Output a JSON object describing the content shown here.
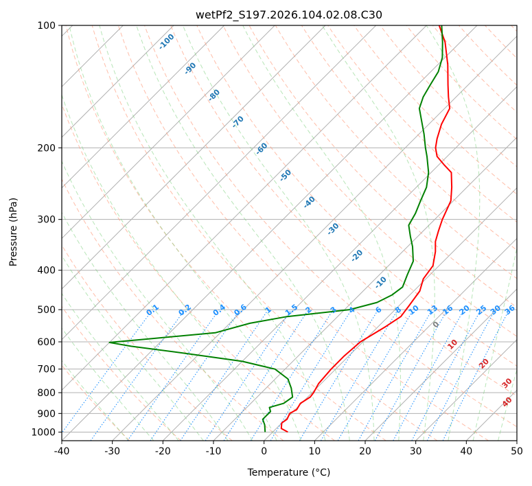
{
  "chart_data": {
    "type": "line",
    "title": "wetPf2_S197.2026.104.02.08.C30",
    "xlabel": "Temperature (°C)",
    "ylabel": "Pressure (hPa)",
    "xlim": [
      -40,
      50
    ],
    "ylim": [
      1050,
      100
    ],
    "y_scale": "log",
    "skew": true,
    "grid": true,
    "x_ticks": [
      -40,
      -30,
      -20,
      -10,
      0,
      10,
      20,
      30,
      40,
      50
    ],
    "y_ticks": [
      100,
      200,
      300,
      400,
      500,
      600,
      700,
      800,
      900,
      1000
    ],
    "series": [
      {
        "role": "temperature",
        "color": "#ff0000",
        "points": [
          [
            1000,
            3
          ],
          [
            980,
            1
          ],
          [
            950,
            0
          ],
          [
            930,
            0.3
          ],
          [
            900,
            -0.3
          ],
          [
            880,
            0.3
          ],
          [
            850,
            -0.2
          ],
          [
            820,
            0.5
          ],
          [
            800,
            0.3
          ],
          [
            760,
            -0.5
          ],
          [
            700,
            -0.9
          ],
          [
            650,
            -0.9
          ],
          [
            600,
            -0.5
          ],
          [
            550,
            1.5
          ],
          [
            520,
            2.5
          ],
          [
            490,
            2.0
          ],
          [
            450,
            1.2
          ],
          [
            420,
            -0.5
          ],
          [
            390,
            -1.2
          ],
          [
            360,
            -3.5
          ],
          [
            340,
            -5.5
          ],
          [
            320,
            -7.0
          ],
          [
            300,
            -8.5
          ],
          [
            270,
            -10.5
          ],
          [
            250,
            -13.0
          ],
          [
            230,
            -16.0
          ],
          [
            220,
            -19.0
          ],
          [
            210,
            -22.0
          ],
          [
            200,
            -24.0
          ],
          [
            190,
            -25.5
          ],
          [
            175,
            -27.5
          ],
          [
            160,
            -29.0
          ],
          [
            150,
            -31.5
          ],
          [
            140,
            -34.0
          ],
          [
            125,
            -38.0
          ],
          [
            110,
            -43.0
          ],
          [
            100,
            -47.5
          ]
        ]
      },
      {
        "role": "dewpoint",
        "color": "#008000",
        "points": [
          [
            1000,
            -1.5
          ],
          [
            960,
            -3.0
          ],
          [
            930,
            -4.5
          ],
          [
            890,
            -4.5
          ],
          [
            870,
            -5.5
          ],
          [
            850,
            -3.5
          ],
          [
            820,
            -3.0
          ],
          [
            780,
            -5.0
          ],
          [
            740,
            -7.5
          ],
          [
            700,
            -12.0
          ],
          [
            670,
            -20.0
          ],
          [
            640,
            -33.0
          ],
          [
            615,
            -45.0
          ],
          [
            602,
            -50.0
          ],
          [
            590,
            -43.0
          ],
          [
            570,
            -31.0
          ],
          [
            540,
            -26.0
          ],
          [
            520,
            -20.0
          ],
          [
            500,
            -9.0
          ],
          [
            480,
            -5.0
          ],
          [
            460,
            -3.5
          ],
          [
            440,
            -3.0
          ],
          [
            410,
            -4.5
          ],
          [
            380,
            -6.0
          ],
          [
            350,
            -9.0
          ],
          [
            330,
            -11.5
          ],
          [
            310,
            -14.0
          ],
          [
            290,
            -15.0
          ],
          [
            270,
            -16.5
          ],
          [
            250,
            -18.0
          ],
          [
            230,
            -20.5
          ],
          [
            210,
            -24.0
          ],
          [
            200,
            -26.0
          ],
          [
            185,
            -29.0
          ],
          [
            170,
            -32.5
          ],
          [
            160,
            -35.0
          ],
          [
            150,
            -36.5
          ],
          [
            140,
            -37.5
          ],
          [
            130,
            -38.5
          ],
          [
            120,
            -40.5
          ],
          [
            110,
            -43.5
          ],
          [
            100,
            -47.0
          ]
        ]
      }
    ],
    "dry_adiabat_labels": [
      "-100",
      "-90",
      "-80",
      "-70",
      "-60",
      "-50",
      "-40",
      "-30",
      "-20",
      "-10"
    ],
    "mixing_ratio_labels": [
      "0.1",
      "0.2",
      "0.4",
      "0.6",
      "1",
      "1.5",
      "2",
      "3",
      "4",
      "6",
      "8",
      "10",
      "13",
      "16",
      "20",
      "25",
      "30",
      "36"
    ],
    "moist_adiabat_labels": [
      "0",
      "10",
      "20",
      "30",
      "40"
    ]
  }
}
